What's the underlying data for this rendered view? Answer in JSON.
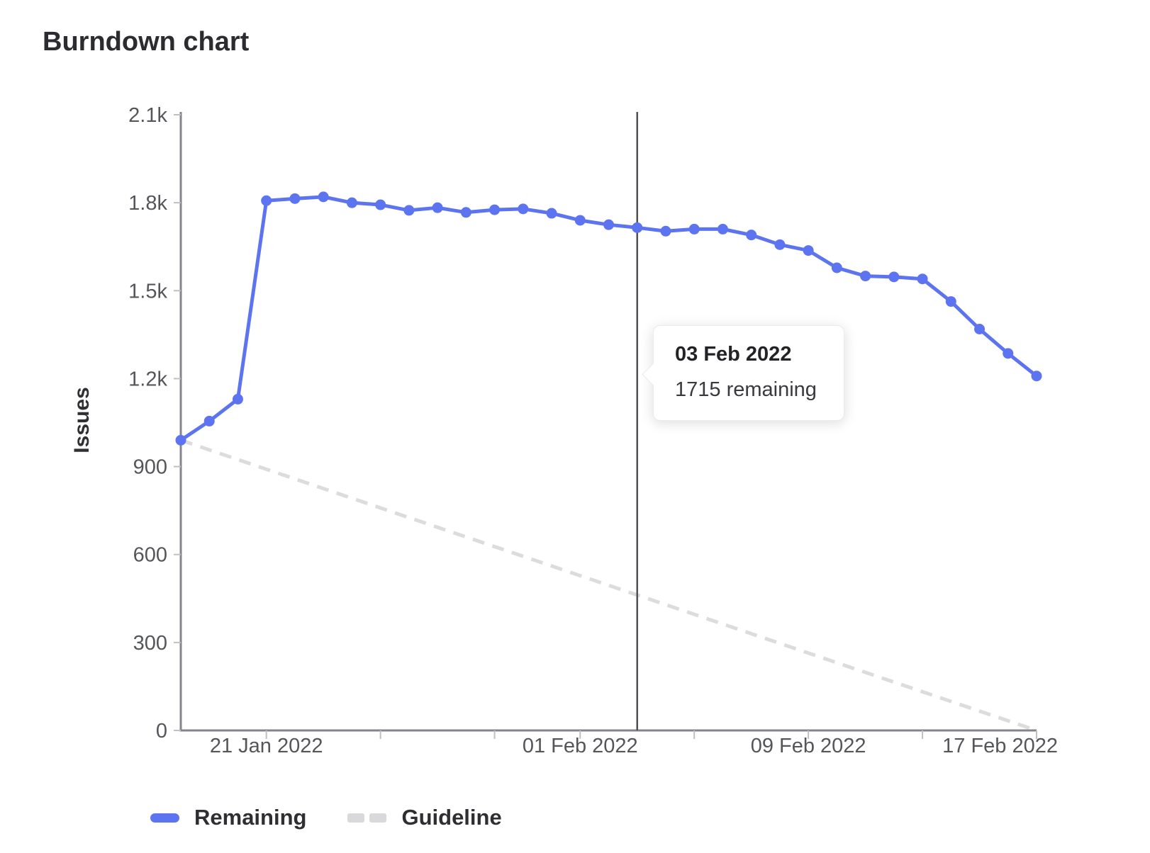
{
  "title": "Burndown chart",
  "colors": {
    "remaining": "#5c74f0",
    "guideline": "#dcdcdc",
    "axis_line": "#84848c",
    "tick_mark": "#bfbfc4",
    "tick_text": "#55565a",
    "today_line": "#4f4f55",
    "text_dark": "#303034"
  },
  "chart_data": {
    "type": "line",
    "title": "Burndown chart",
    "xlabel": "",
    "ylabel": "Issues",
    "ylim": [
      0,
      2100
    ],
    "grid": false,
    "legend_position": "bottom",
    "y_ticks": [
      {
        "value": 0,
        "label": "0"
      },
      {
        "value": 300,
        "label": "300"
      },
      {
        "value": 600,
        "label": "600"
      },
      {
        "value": 900,
        "label": "900"
      },
      {
        "value": 1200,
        "label": "1.2k"
      },
      {
        "value": 1500,
        "label": "1.5k"
      },
      {
        "value": 1800,
        "label": "1.8k"
      },
      {
        "value": 2100,
        "label": "2.1k"
      }
    ],
    "x_dates": [
      "18 Jan 2022",
      "19 Jan 2022",
      "20 Jan 2022",
      "21 Jan 2022",
      "22 Jan 2022",
      "23 Jan 2022",
      "24 Jan 2022",
      "25 Jan 2022",
      "26 Jan 2022",
      "27 Jan 2022",
      "28 Jan 2022",
      "29 Jan 2022",
      "30 Jan 2022",
      "31 Jan 2022",
      "01 Feb 2022",
      "02 Feb 2022",
      "03 Feb 2022",
      "04 Feb 2022",
      "05 Feb 2022",
      "06 Feb 2022",
      "07 Feb 2022",
      "08 Feb 2022",
      "09 Feb 2022",
      "10 Feb 2022",
      "11 Feb 2022",
      "12 Feb 2022",
      "13 Feb 2022",
      "14 Feb 2022",
      "15 Feb 2022",
      "16 Feb 2022",
      "17 Feb 2022"
    ],
    "x_tick_indices": [
      3,
      7,
      11,
      14,
      18,
      22,
      26,
      30
    ],
    "x_tick_labels": [
      {
        "index": 3,
        "label": "21 Jan 2022"
      },
      {
        "index": 14,
        "label": "01 Feb 2022"
      },
      {
        "index": 22,
        "label": "09 Feb 2022"
      },
      {
        "index": 30,
        "label": "17 Feb 2022"
      }
    ],
    "today_index": 16,
    "series": [
      {
        "name": "Remaining",
        "style": "solid",
        "values": [
          990,
          1055,
          1130,
          1807,
          1814,
          1820,
          1800,
          1793,
          1774,
          1783,
          1767,
          1776,
          1779,
          1764,
          1740,
          1725,
          1715,
          1703,
          1710,
          1710,
          1690,
          1657,
          1637,
          1578,
          1550,
          1547,
          1540,
          1463,
          1369,
          1286,
          1209
        ]
      },
      {
        "name": "Guideline",
        "style": "dashed",
        "values_endpoints": [
          {
            "index": 0,
            "value": 990
          },
          {
            "index": 30,
            "value": 0
          }
        ]
      }
    ]
  },
  "tooltip": {
    "title": "03 Feb 2022",
    "value_text": "1715 remaining"
  },
  "legend": {
    "items": [
      {
        "label": "Remaining",
        "style": "solid"
      },
      {
        "label": "Guideline",
        "style": "dashed"
      }
    ]
  }
}
